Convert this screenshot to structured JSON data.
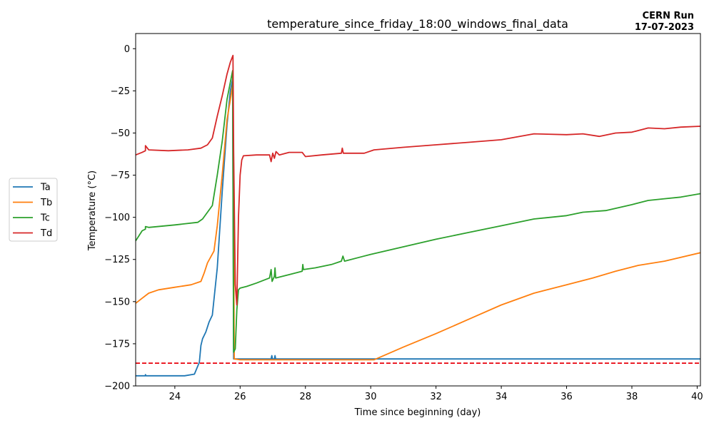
{
  "chart_data": {
    "type": "line",
    "title": "temperature_since_friday_18:00_windows_final_data",
    "annotation_lines": [
      "CERN Run",
      "17-07-2023"
    ],
    "xlabel": "Time since beginning (day)",
    "ylabel": "Temperature (°C)",
    "xlim": [
      22.8,
      40.1
    ],
    "ylim": [
      -200,
      9
    ],
    "xticks": [
      24,
      26,
      28,
      30,
      32,
      34,
      36,
      38,
      40
    ],
    "yticks": [
      -200,
      -175,
      -150,
      -125,
      -100,
      -75,
      -50,
      -25,
      0
    ],
    "grid": false,
    "legend_position": "outside-left",
    "reference_line": {
      "y": -186.5,
      "color": "#e8000b",
      "style": "dashed"
    },
    "series": [
      {
        "name": "Ta",
        "color": "#1f77b4",
        "points": [
          [
            22.8,
            -194
          ],
          [
            23.1,
            -194
          ],
          [
            23.1,
            -193.3
          ],
          [
            23.12,
            -194
          ],
          [
            23.5,
            -194
          ],
          [
            24.0,
            -194
          ],
          [
            24.3,
            -194
          ],
          [
            24.6,
            -193
          ],
          [
            24.75,
            -186
          ],
          [
            24.8,
            -176
          ],
          [
            24.85,
            -172
          ],
          [
            24.95,
            -168
          ],
          [
            25.05,
            -162
          ],
          [
            25.15,
            -158
          ],
          [
            25.3,
            -130
          ],
          [
            25.45,
            -85
          ],
          [
            25.6,
            -45
          ],
          [
            25.7,
            -25
          ],
          [
            25.77,
            -18
          ],
          [
            25.8,
            -184
          ],
          [
            26.0,
            -184
          ],
          [
            26.95,
            -184
          ],
          [
            26.97,
            -182
          ],
          [
            26.99,
            -184
          ],
          [
            27.05,
            -184
          ],
          [
            27.07,
            -182
          ],
          [
            27.09,
            -184
          ],
          [
            28,
            -184
          ],
          [
            30,
            -184
          ],
          [
            32,
            -184
          ],
          [
            34,
            -184
          ],
          [
            36,
            -184
          ],
          [
            38,
            -184
          ],
          [
            40.1,
            -184
          ]
        ]
      },
      {
        "name": "Tb",
        "color": "#ff7f0e",
        "points": [
          [
            22.8,
            -151
          ],
          [
            23.0,
            -148
          ],
          [
            23.2,
            -145
          ],
          [
            23.5,
            -143
          ],
          [
            24.0,
            -141.5
          ],
          [
            24.5,
            -140
          ],
          [
            24.8,
            -138
          ],
          [
            24.9,
            -133
          ],
          [
            25.0,
            -127
          ],
          [
            25.2,
            -120
          ],
          [
            25.3,
            -105
          ],
          [
            25.45,
            -75
          ],
          [
            25.6,
            -42
          ],
          [
            25.72,
            -28
          ],
          [
            25.78,
            -20
          ],
          [
            25.82,
            -184
          ],
          [
            26.0,
            -184.5
          ],
          [
            26.5,
            -184.5
          ],
          [
            27,
            -184.5
          ],
          [
            28,
            -184.5
          ],
          [
            29,
            -184.5
          ],
          [
            30.1,
            -184.5
          ],
          [
            31,
            -177
          ],
          [
            32,
            -169
          ],
          [
            33,
            -160.5
          ],
          [
            34,
            -152
          ],
          [
            35,
            -145
          ],
          [
            36,
            -140
          ],
          [
            36.8,
            -136
          ],
          [
            37.5,
            -132
          ],
          [
            38.2,
            -128.5
          ],
          [
            39,
            -126
          ],
          [
            40.1,
            -121
          ]
        ]
      },
      {
        "name": "Tc",
        "color": "#2ca02c",
        "points": [
          [
            22.8,
            -114
          ],
          [
            23.0,
            -108
          ],
          [
            23.1,
            -107
          ],
          [
            23.1,
            -105.5
          ],
          [
            23.2,
            -106
          ],
          [
            24.0,
            -104.5
          ],
          [
            24.7,
            -103
          ],
          [
            24.85,
            -101
          ],
          [
            25.0,
            -97
          ],
          [
            25.15,
            -93
          ],
          [
            25.3,
            -75
          ],
          [
            25.45,
            -55
          ],
          [
            25.6,
            -30
          ],
          [
            25.72,
            -18
          ],
          [
            25.77,
            -13
          ],
          [
            25.8,
            -180
          ],
          [
            25.85,
            -178
          ],
          [
            25.9,
            -155
          ],
          [
            25.95,
            -143
          ],
          [
            26.0,
            -142
          ],
          [
            26.2,
            -141
          ],
          [
            26.5,
            -139
          ],
          [
            26.9,
            -136
          ],
          [
            26.95,
            -131
          ],
          [
            26.98,
            -138
          ],
          [
            27.05,
            -135
          ],
          [
            27.07,
            -130
          ],
          [
            27.09,
            -136
          ],
          [
            27.5,
            -134
          ],
          [
            27.9,
            -132
          ],
          [
            27.92,
            -128
          ],
          [
            27.94,
            -131
          ],
          [
            28.3,
            -130
          ],
          [
            28.8,
            -128
          ],
          [
            29.1,
            -126
          ],
          [
            29.15,
            -123
          ],
          [
            29.2,
            -126
          ],
          [
            30,
            -122
          ],
          [
            31,
            -117.5
          ],
          [
            32,
            -113
          ],
          [
            33,
            -109
          ],
          [
            34,
            -105
          ],
          [
            35,
            -101
          ],
          [
            36,
            -99
          ],
          [
            36.5,
            -97
          ],
          [
            37.2,
            -96
          ],
          [
            38,
            -92.5
          ],
          [
            38.5,
            -90
          ],
          [
            39,
            -89
          ],
          [
            39.5,
            -88
          ],
          [
            40.1,
            -86
          ]
        ]
      },
      {
        "name": "Td",
        "color": "#d62728",
        "points": [
          [
            22.8,
            -63
          ],
          [
            23.0,
            -61.5
          ],
          [
            23.1,
            -60.5
          ],
          [
            23.1,
            -57.5
          ],
          [
            23.2,
            -60
          ],
          [
            23.8,
            -60.5
          ],
          [
            24.4,
            -60
          ],
          [
            24.8,
            -59
          ],
          [
            25.0,
            -57
          ],
          [
            25.15,
            -53
          ],
          [
            25.3,
            -40
          ],
          [
            25.45,
            -28
          ],
          [
            25.6,
            -15
          ],
          [
            25.7,
            -8
          ],
          [
            25.78,
            -4
          ],
          [
            25.8,
            -60
          ],
          [
            25.85,
            -140
          ],
          [
            25.9,
            -152
          ],
          [
            25.95,
            -100
          ],
          [
            26.0,
            -75
          ],
          [
            26.05,
            -66
          ],
          [
            26.1,
            -63.5
          ],
          [
            26.5,
            -63
          ],
          [
            26.9,
            -63
          ],
          [
            26.95,
            -67
          ],
          [
            27.0,
            -62
          ],
          [
            27.05,
            -65
          ],
          [
            27.1,
            -61
          ],
          [
            27.2,
            -63
          ],
          [
            27.5,
            -61.5
          ],
          [
            27.9,
            -61.5
          ],
          [
            28.0,
            -64
          ],
          [
            28.5,
            -63
          ],
          [
            29.1,
            -62
          ],
          [
            29.13,
            -59
          ],
          [
            29.16,
            -62
          ],
          [
            29.8,
            -62
          ],
          [
            30.1,
            -60
          ],
          [
            31,
            -58.5
          ],
          [
            32,
            -57
          ],
          [
            33,
            -55.5
          ],
          [
            34,
            -54
          ],
          [
            35,
            -50.5
          ],
          [
            36,
            -51
          ],
          [
            36.5,
            -50.5
          ],
          [
            37,
            -52
          ],
          [
            37.5,
            -50
          ],
          [
            38,
            -49.5
          ],
          [
            38.5,
            -47
          ],
          [
            39,
            -47.5
          ],
          [
            39.5,
            -46.5
          ],
          [
            40.1,
            -46
          ]
        ]
      }
    ]
  }
}
